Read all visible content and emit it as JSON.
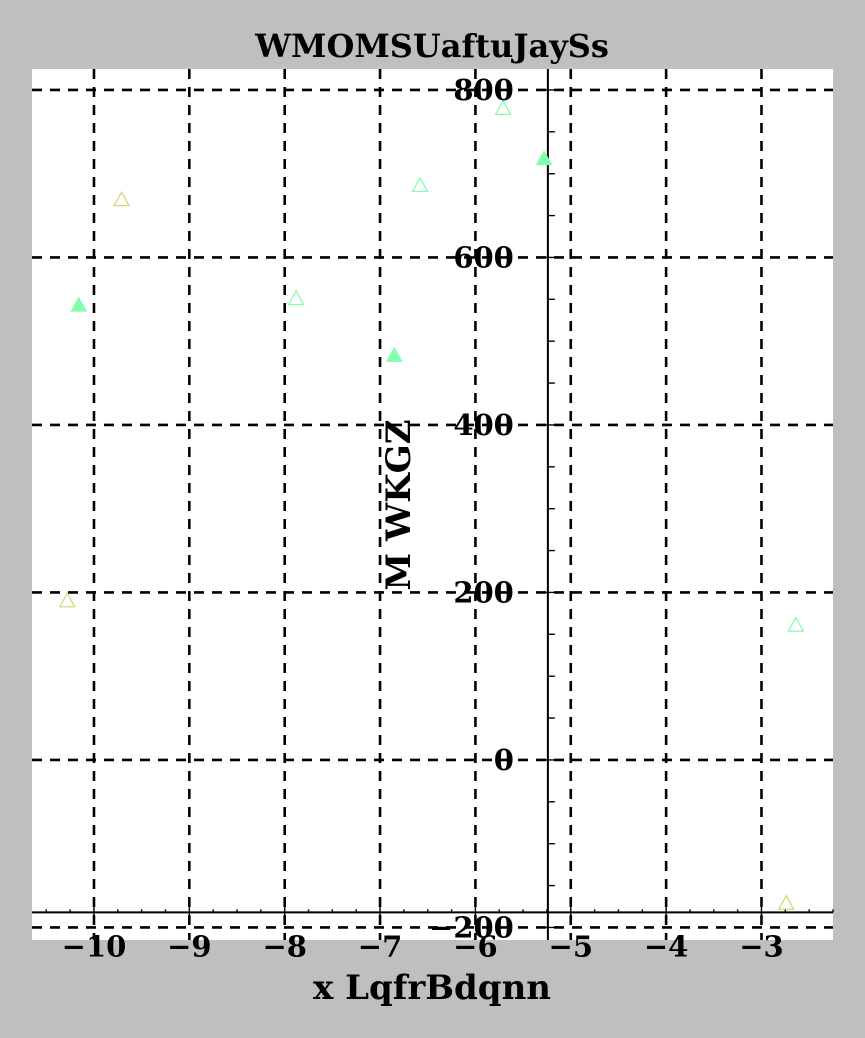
{
  "chart_data": {
    "type": "scatter",
    "title": "WMOMSUaftuJaySs",
    "xlabel": "x LqfrBdqnn",
    "ylabel": "M WKGZ",
    "xlim": [
      -10.65,
      -2.25
    ],
    "ylim": [
      -215,
      825
    ],
    "x_ticks": [
      -10,
      -9,
      -8,
      -7,
      -6,
      -5,
      -4,
      -3
    ],
    "y_ticks": [
      -200,
      0,
      200,
      400,
      600,
      800
    ],
    "x_tick_labels": [
      "−10",
      "−9",
      "−8",
      "−7",
      "−6",
      "−5",
      "−4",
      "−3"
    ],
    "y_tick_labels": [
      "−200",
      "0",
      "200",
      "400",
      "600",
      "800"
    ],
    "grid": true,
    "spine_position": {
      "x_axis_at_y": -182,
      "y_axis_at_x": -5.24
    },
    "series": [
      {
        "marker": "filled-triangle",
        "color": "#7fffaa",
        "points": [
          {
            "x": -10.16,
            "y": 543
          },
          {
            "x": -6.85,
            "y": 483
          },
          {
            "x": -5.28,
            "y": 718
          }
        ]
      },
      {
        "marker": "open-triangle",
        "color": "#7fffaa",
        "points": [
          {
            "x": -7.88,
            "y": 551
          },
          {
            "x": -6.58,
            "y": 686
          },
          {
            "x": -5.71,
            "y": 778
          },
          {
            "x": -2.64,
            "y": 161
          }
        ]
      },
      {
        "marker": "open-triangle",
        "color": "#d4d47a",
        "points": [
          {
            "x": -9.71,
            "y": 669
          },
          {
            "x": -10.28,
            "y": 190
          },
          {
            "x": -2.74,
            "y": -171
          }
        ]
      }
    ]
  }
}
